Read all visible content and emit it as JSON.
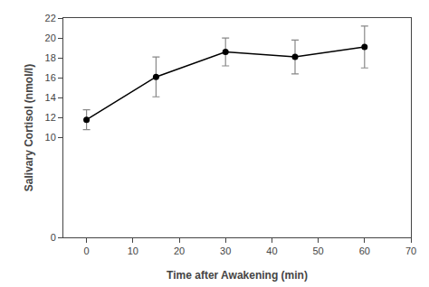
{
  "chart_data": {
    "type": "line",
    "xlabel": "Time after Awakening (min)",
    "ylabel": "Salivary Cortisol (nmol/l)",
    "x": [
      0,
      15,
      30,
      45,
      60
    ],
    "values": [
      11.8,
      16.1,
      18.6,
      18.1,
      19.1
    ],
    "color": "#000000",
    "marker": "circle",
    "error_bars": {
      "upper": [
        1.0,
        2.0,
        1.4,
        1.7,
        2.1
      ],
      "lower": [
        1.0,
        2.0,
        1.4,
        1.7,
        2.1
      ],
      "color": "#888888"
    },
    "xlim": [
      -5,
      70
    ],
    "ylim": [
      0,
      22
    ],
    "xticks": [
      0,
      10,
      20,
      30,
      40,
      50,
      60,
      70
    ],
    "yticks": [
      0,
      10,
      12,
      14,
      16,
      18,
      20,
      22
    ],
    "grid": false
  }
}
